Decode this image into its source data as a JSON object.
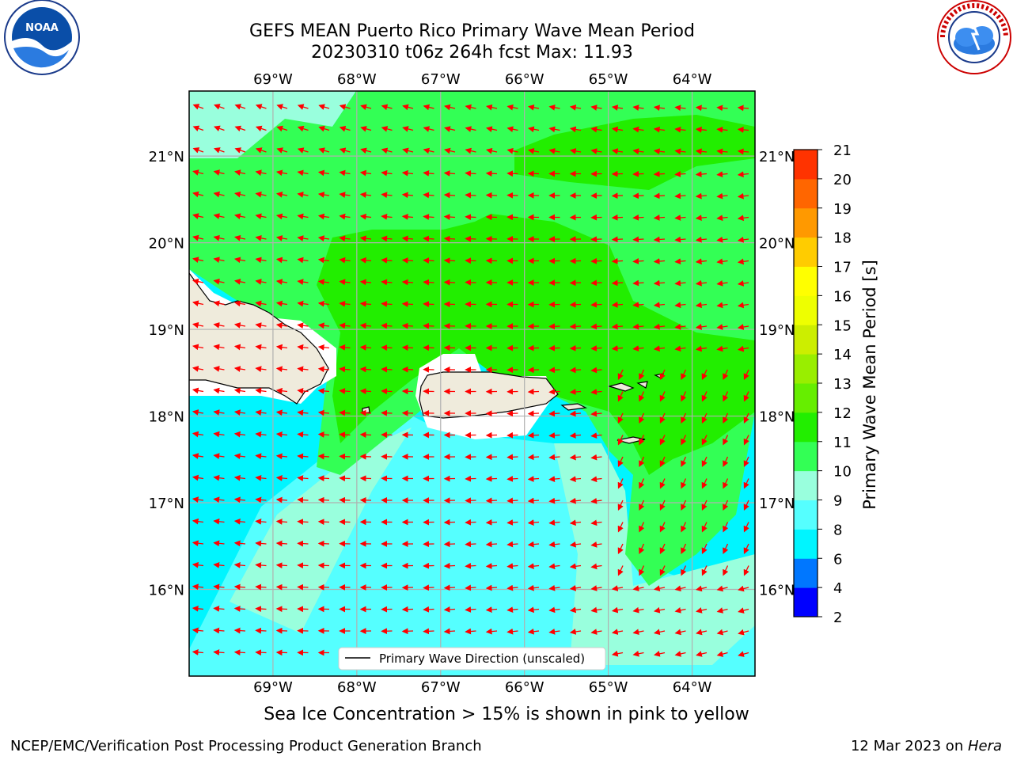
{
  "title_line1": "GEFS MEAN Puerto Rico Primary Wave Mean Period",
  "title_line2": "20230310 t06z 264h fcst   Max: 11.93",
  "note": "Sea Ice Concentration > 15% is shown in pink to yellow",
  "footer_left": "NCEP/EMC/Verification Post Processing Product Generation Branch",
  "footer_right_date": "12 Mar 2023 on ",
  "footer_right_host": "Hera",
  "legend_label": "Primary Wave Direction (unscaled)",
  "colorbar": {
    "label": "Primary Wave Mean Period [s]",
    "ticks": [
      "2",
      "4",
      "6",
      "8",
      "9",
      "10",
      "11",
      "12",
      "13",
      "14",
      "15",
      "16",
      "17",
      "18",
      "19",
      "20",
      "21"
    ],
    "colors": [
      "#0000ff",
      "#0077ff",
      "#00f5ff",
      "#55ffff",
      "#99ffdd",
      "#33ff55",
      "#22ee00",
      "#66ee00",
      "#99ee00",
      "#ccee00",
      "#eeff00",
      "#ffff00",
      "#ffcc00",
      "#ff9900",
      "#ff6600",
      "#ff3300",
      "#ff0000"
    ]
  },
  "map": {
    "lon_labels": [
      "69°W",
      "68°W",
      "67°W",
      "66°W",
      "65°W",
      "64°W"
    ],
    "lat_labels": [
      "21°N",
      "20°N",
      "19°N",
      "18°N",
      "17°N",
      "16°N"
    ],
    "lon_values": [
      -69,
      -68,
      -67,
      -66,
      -65,
      -64
    ],
    "lat_values": [
      21,
      20,
      19,
      18,
      17,
      16
    ],
    "lon_range": [
      -70,
      -63.25
    ],
    "lat_range": [
      15.0,
      21.75
    ]
  },
  "logos": {
    "noaa_text": "NOAA",
    "noaa_ring": "NATIONAL OCEANIC AND ATMOSPHERIC ADMINISTRATION · U.S. DEPARTMENT OF COMMERCE",
    "nws_ring": "NATIONAL WEATHER SERVICE"
  }
}
